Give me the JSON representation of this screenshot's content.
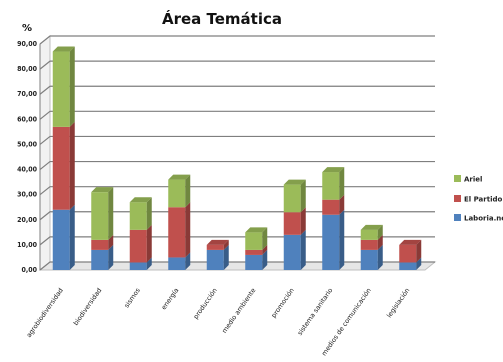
{
  "chart_data": {
    "type": "bar",
    "stacked": true,
    "title": "Área Temática",
    "ylabel": "%",
    "ylim": [
      0,
      90
    ],
    "yticks": [
      "0,00",
      "10,00",
      "20,00",
      "30,00",
      "40,00",
      "50,00",
      "60,00",
      "70,00",
      "80,00",
      "90,00"
    ],
    "grid": true,
    "legend_position": "right",
    "categories": [
      "agrobiodiversidad",
      "biodiversidad",
      "sismos",
      "energía",
      "producción",
      "medio ambiente",
      "promoción",
      "sistema sanitario",
      "medios de comunicación",
      "legislación"
    ],
    "series": [
      {
        "name": "Ariel",
        "color": "#9bbb59",
        "values": [
          30,
          19,
          11,
          11,
          0,
          7,
          11,
          11,
          4,
          0
        ]
      },
      {
        "name": "El Partido",
        "color": "#c0504d",
        "values": [
          33,
          4,
          13,
          20,
          2,
          2,
          9,
          6,
          4,
          7
        ]
      },
      {
        "name": "Laboria.net",
        "color": "#4f81bd",
        "values": [
          24,
          8,
          3,
          5,
          8,
          6,
          14,
          22,
          8,
          3
        ]
      }
    ]
  }
}
